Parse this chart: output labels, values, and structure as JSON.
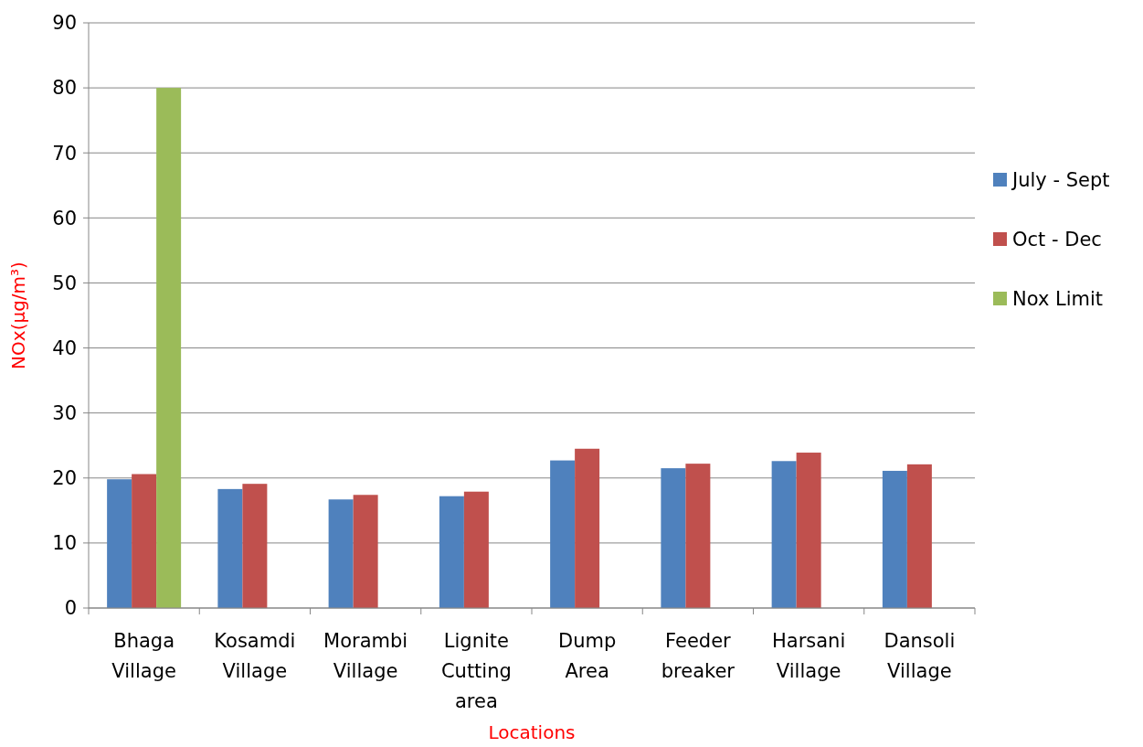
{
  "chart_data": {
    "type": "bar",
    "xlabel": "Locations",
    "ylabel": "NOx(µg/m³)",
    "categories": [
      "Bhaga Village",
      "Kosamdi Village",
      "Morambi Village",
      "Lignite Cutting area",
      "Dump Area",
      "Feeder breaker",
      "Harsani Village",
      "Dansoli Village"
    ],
    "series": [
      {
        "name": "July - Sept",
        "color": "#4f81bd",
        "values": [
          19.8,
          18.3,
          16.7,
          17.2,
          22.7,
          21.5,
          22.6,
          21.1
        ]
      },
      {
        "name": "Oct - Dec",
        "color": "#c0504d",
        "values": [
          20.6,
          19.1,
          17.4,
          17.9,
          24.5,
          22.2,
          23.9,
          22.1
        ]
      },
      {
        "name": "Nox Limit",
        "color": "#9bbb59",
        "values": [
          80,
          null,
          null,
          null,
          null,
          null,
          null,
          null
        ]
      }
    ],
    "ylim": [
      0,
      90
    ],
    "yticks": [
      0,
      10,
      20,
      30,
      40,
      50,
      60,
      70,
      80,
      90
    ],
    "grid": "y",
    "legend": "right"
  }
}
